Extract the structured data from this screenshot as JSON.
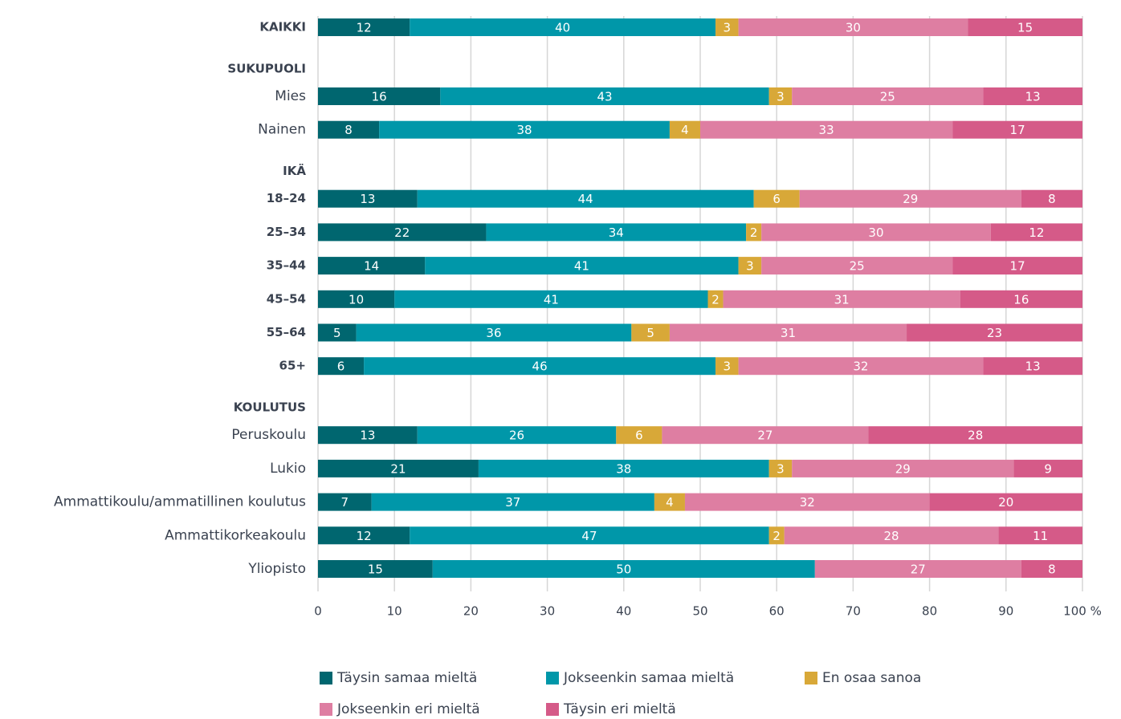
{
  "chart_data": {
    "type": "stacked-bar-horizontal",
    "categories": [
      "KAIKKI",
      "SUKUPUOLI",
      "Mies",
      "Nainen",
      "IKÄ",
      "18–24",
      "25–34",
      "35–44",
      "45–54",
      "55–64",
      "65+",
      "KOULUTUS",
      "Peruskoulu",
      "Lukio",
      "Ammattikoulu/ammatillinen koulutus",
      "Ammattikorkeakoulu",
      "Yliopisto"
    ],
    "series": [
      {
        "name": "Täysin samaa mieltä",
        "color": "#00666f",
        "values": [
          12,
          null,
          16,
          8,
          null,
          13,
          22,
          14,
          10,
          5,
          6,
          null,
          13,
          21,
          7,
          12,
          15
        ]
      },
      {
        "name": "Jokseenkin samaa mieltä",
        "color": "#0097a9",
        "values": [
          40,
          null,
          43,
          38,
          null,
          44,
          34,
          41,
          41,
          36,
          46,
          null,
          26,
          38,
          37,
          47,
          50
        ]
      },
      {
        "name": "En osaa sanoa",
        "color": "#d8a838",
        "values": [
          3,
          null,
          3,
          4,
          null,
          6,
          2,
          3,
          2,
          5,
          3,
          null,
          6,
          3,
          4,
          2,
          null
        ]
      },
      {
        "name": "Jokseenkin eri mieltä",
        "color": "#de7ea2",
        "values": [
          30,
          null,
          25,
          33,
          null,
          29,
          30,
          25,
          31,
          31,
          32,
          null,
          27,
          29,
          32,
          28,
          27
        ]
      },
      {
        "name": "Täysin eri mieltä",
        "color": "#d55a88",
        "values": [
          15,
          null,
          13,
          17,
          null,
          8,
          12,
          17,
          16,
          23,
          13,
          null,
          28,
          9,
          20,
          11,
          8
        ]
      }
    ],
    "xlim": [
      0,
      100
    ],
    "xticks": [
      0,
      10,
      20,
      30,
      40,
      50,
      60,
      70,
      80,
      90,
      {
        "value": 100,
        "label": "100 %"
      }
    ],
    "grid": true
  }
}
